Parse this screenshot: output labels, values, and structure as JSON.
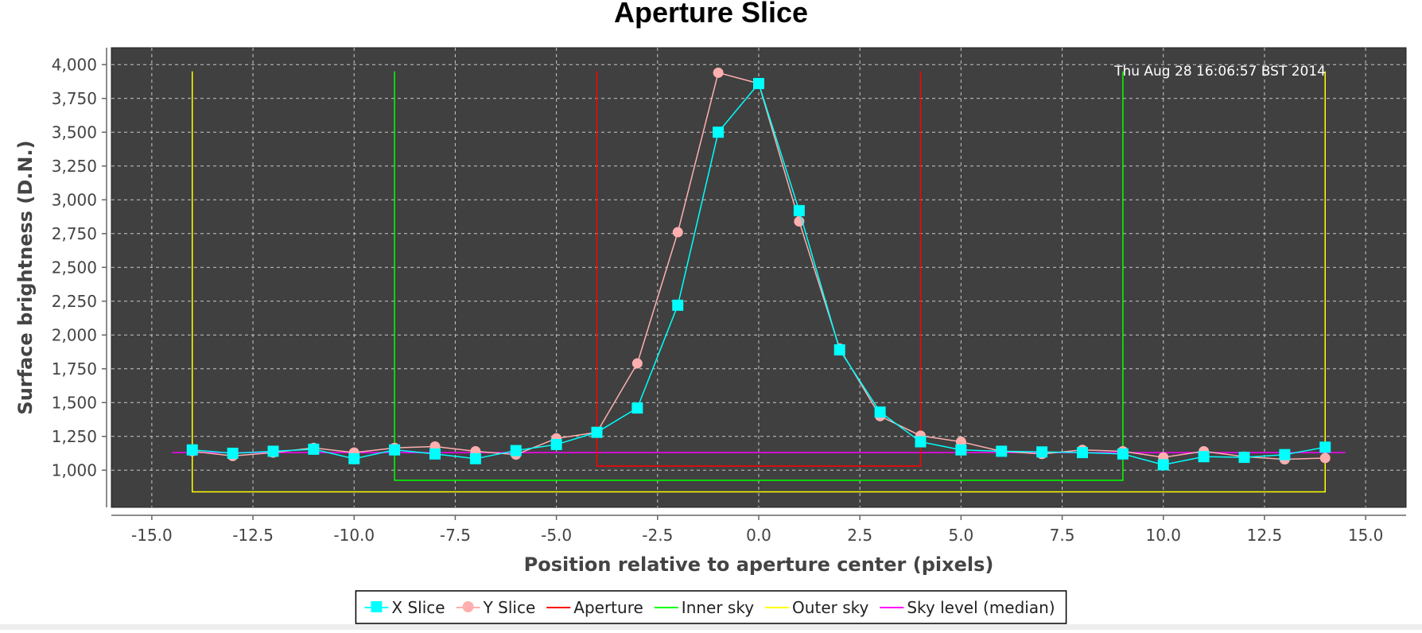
{
  "chart_data": {
    "type": "line",
    "title": "Aperture Slice",
    "timestamp": "Thu Aug 28 16:06:57 BST 2014",
    "xlabel": "Position relative to aperture center (pixels)",
    "ylabel": "Surface brightness (D.N.)",
    "xlim": [
      -16.0,
      16.0
    ],
    "ylim": [
      725,
      4125
    ],
    "x_ticks": [
      -15.0,
      -12.5,
      -10.0,
      -7.5,
      -5.0,
      -2.5,
      0.0,
      2.5,
      5.0,
      7.5,
      10.0,
      12.5,
      15.0
    ],
    "x_tick_labels": [
      "-15.0",
      "-12.5",
      "-10.0",
      "-7.5",
      "-5.0",
      "-2.5",
      "0.0",
      "2.5",
      "5.0",
      "7.5",
      "10.0",
      "12.5",
      "15.0"
    ],
    "y_ticks": [
      1000,
      1250,
      1500,
      1750,
      2000,
      2250,
      2500,
      2750,
      3000,
      3250,
      3500,
      3750,
      4000
    ],
    "y_tick_labels": [
      "1,000",
      "1,250",
      "1,500",
      "1,750",
      "2,000",
      "2,250",
      "2,500",
      "2,750",
      "3,000",
      "3,250",
      "3,500",
      "3,750",
      "4,000"
    ],
    "grid": true,
    "legend_position": "bottom",
    "plot_background": "#404040",
    "series": [
      {
        "name": "X Slice",
        "color": "#00ffff",
        "marker": "square",
        "x": [
          -14,
          -13,
          -12,
          -11,
          -10,
          -9,
          -8,
          -7,
          -6,
          -5,
          -4,
          -3,
          -2,
          -1,
          0,
          1,
          2,
          3,
          4,
          5,
          6,
          7,
          8,
          9,
          10,
          11,
          12,
          13,
          14
        ],
        "y": [
          1150,
          1125,
          1140,
          1155,
          1085,
          1150,
          1120,
          1085,
          1145,
          1190,
          1280,
          1460,
          2220,
          3500,
          3860,
          2920,
          1890,
          1430,
          1210,
          1150,
          1140,
          1135,
          1130,
          1120,
          1040,
          1100,
          1095,
          1115,
          1170
        ]
      },
      {
        "name": "Y Slice",
        "color": "#ffafaf",
        "marker": "circle",
        "x": [
          -14,
          -13,
          -12,
          -11,
          -10,
          -9,
          -8,
          -7,
          -6,
          -5,
          -4,
          -3,
          -2,
          -1,
          0,
          1,
          2,
          3,
          4,
          5,
          6,
          7,
          8,
          9,
          10,
          11,
          12,
          13,
          14
        ],
        "y": [
          1140,
          1105,
          1130,
          1165,
          1130,
          1165,
          1175,
          1140,
          1115,
          1235,
          1280,
          1790,
          2760,
          3940,
          3860,
          2840,
          1900,
          1400,
          1255,
          1210,
          1140,
          1120,
          1150,
          1140,
          1095,
          1140,
          1100,
          1080,
          1090
        ]
      },
      {
        "name": "Aperture",
        "color": "#ff0000",
        "marker": "none",
        "x": [
          -4,
          -4,
          4,
          4
        ],
        "y": [
          3950,
          1030,
          1030,
          3950
        ]
      },
      {
        "name": "Inner sky",
        "color": "#00ff00",
        "marker": "none",
        "x": [
          -9,
          -9,
          9,
          9
        ],
        "y": [
          3950,
          925,
          925,
          3950
        ]
      },
      {
        "name": "Outer sky",
        "color": "#ffff00",
        "marker": "none",
        "x": [
          -14,
          -14,
          14,
          14
        ],
        "y": [
          3950,
          840,
          840,
          3950
        ]
      },
      {
        "name": "Sky level (median)",
        "color": "#ff00ff",
        "marker": "none",
        "x": [
          -14.5,
          14.5
        ],
        "y": [
          1130,
          1130
        ]
      }
    ]
  }
}
